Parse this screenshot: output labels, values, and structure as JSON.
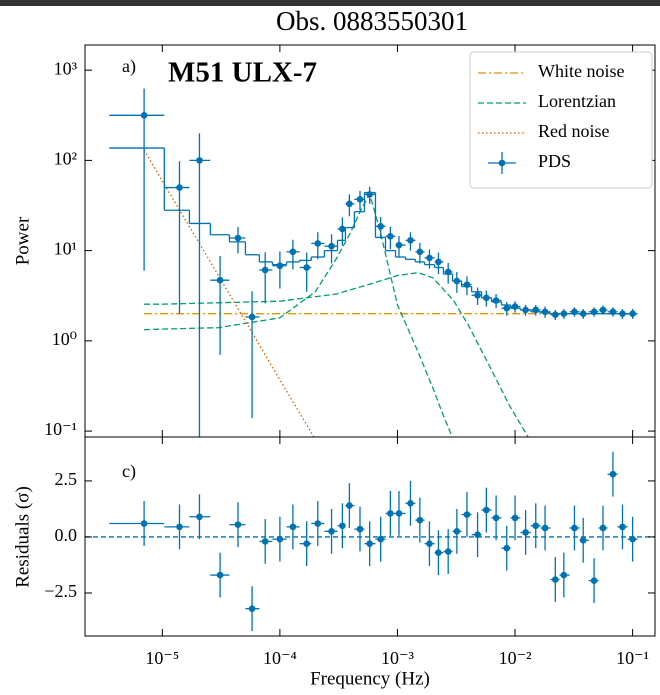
{
  "chart_data": {
    "type": "line",
    "title": "Obs. 0883550301",
    "x_label": "Frequency (Hz)",
    "xscale": "log",
    "xlim": [
      2.2e-06,
      0.155
    ],
    "xticks": [
      {
        "value": 1e-05,
        "label": "10⁻⁵"
      },
      {
        "value": 0.0001,
        "label": "10⁻⁴"
      },
      {
        "value": 0.001,
        "label": "10⁻³"
      },
      {
        "value": 0.01,
        "label": "10⁻²"
      },
      {
        "value": 0.1,
        "label": "10⁻¹"
      }
    ],
    "panels": [
      {
        "label": "a)",
        "annotation": "M51 ULX-7",
        "annotation_color": "#f5a020",
        "y_label": "Power",
        "yscale": "log",
        "ylim": [
          0.086,
          1900
        ],
        "yticks": [
          {
            "value": 0.1,
            "label": "10⁻¹"
          },
          {
            "value": 1,
            "label": "10⁰"
          },
          {
            "value": 10,
            "label": "10¹"
          },
          {
            "value": 100,
            "label": "10²"
          },
          {
            "value": 1000,
            "label": "10³"
          }
        ],
        "legend": "upper right",
        "components": [
          {
            "name": "White noise",
            "color": "#e69500",
            "dash": "dashdot",
            "curves": [
              {
                "x": [
                  7e-06,
                  0.1
                ],
                "values": [
                  2,
                  2
                ]
              }
            ]
          },
          {
            "name": "Lorentzian",
            "color": "#029e73",
            "dash": "dashed",
            "curves": [
              {
                "x": [
                  7e-06,
                  1e-05,
                  3e-05,
                  0.0001,
                  0.0002,
                  0.0003,
                  0.0004,
                  0.0005,
                  0.00058,
                  0.0007,
                  0.001,
                  0.0015,
                  0.002,
                  0.0025,
                  0.003
                ],
                "values": [
                  1.33,
                  1.35,
                  1.4,
                  1.8,
                  3.5,
                  8,
                  16,
                  30,
                  42,
                  18,
                  2.5,
                  0.75,
                  0.3,
                  0.14,
                  0.08
                ]
              },
              {
                "x": [
                  7e-06,
                  1e-05,
                  0.0001,
                  0.0003,
                  0.0006,
                  0.001,
                  0.0015,
                  0.002,
                  0.003,
                  0.004,
                  0.006,
                  0.009,
                  0.013
                ],
                "values": [
                  2.55,
                  2.55,
                  2.75,
                  3.3,
                  4.3,
                  5.3,
                  5.7,
                  5.0,
                  2.8,
                  1.5,
                  0.54,
                  0.19,
                  0.085
                ]
              }
            ]
          },
          {
            "name": "Red noise",
            "color": "#d55e00",
            "dash": "dotted",
            "curves": [
              {
                "x": [
                  7e-06,
                  1e-05,
                  3e-05,
                  0.0001,
                  0.0002
                ],
                "values": [
                  130,
                  59,
                  5.3,
                  0.37,
                  0.081
                ]
              }
            ]
          }
        ],
        "series": [
          {
            "name": "PDS",
            "color": "#0072b2",
            "x": [
              7e-06,
              1.4e-05,
              2.07e-05,
              3.1e-05,
              4.4e-05,
              5.8e-05,
              7.5e-05,
              0.0001,
              0.000129,
              0.000169,
              0.00021,
              0.000275,
              0.00034,
              0.00039,
              0.00048,
              0.00058,
              0.00072,
              0.00087,
              0.00103,
              0.00129,
              0.00155,
              0.00187,
              0.00223,
              0.0027,
              0.0032,
              0.0039,
              0.0048,
              0.0057,
              0.0069,
              0.0085,
              0.01,
              0.0123,
              0.015,
              0.018,
              0.022,
              0.026,
              0.032,
              0.038,
              0.047,
              0.056,
              0.068,
              0.082,
              0.1
            ],
            "bins": [
              3.54e-06,
              1.04e-05,
              1.7e-05,
              2.56e-05,
              3.72e-05,
              5.09e-05,
              6.69e-05,
              8.63e-05,
              0.000114,
              0.000147,
              0.000185,
              0.000239,
              0.000309,
              0.000361,
              0.00043,
              0.000524,
              0.00065,
              0.000791,
              0.000962,
              0.00117,
              0.00142,
              0.0017,
              0.00207,
              0.00246,
              0.00294,
              0.00351,
              0.00427,
              0.00519,
              0.00631,
              0.00767,
              0.00916,
              0.0111,
              0.0136,
              0.0165,
              0.02,
              0.0239,
              0.0291,
              0.0354,
              0.0423,
              0.0514,
              0.0612,
              0.0745,
              0.0906,
              0.11
            ],
            "values": [
              316,
              50,
              100,
              4.7,
              13.8,
              1.84,
              6.1,
              6.8,
              9.7,
              6.5,
              12,
              11.2,
              17.4,
              33,
              37,
              42,
              18.6,
              14.4,
              11.5,
              13,
              9.7,
              8.3,
              7.5,
              5.8,
              4.6,
              4.2,
              3.2,
              3.0,
              2.8,
              2.3,
              2.4,
              2.2,
              2.2,
              2.1,
              1.95,
              2.0,
              2.1,
              2.0,
              2.1,
              2.2,
              2.1,
              2.0,
              2.0
            ],
            "yerr": [
              310,
              48,
              100,
              4,
              4.5,
              1.7,
              3.5,
              3,
              3.5,
              3,
              4,
              4,
              6,
              9,
              9,
              9,
              5,
              4,
              3,
              3,
              2.5,
              2,
              2,
              1.5,
              1.2,
              1,
              0.7,
              0.6,
              0.5,
              0.4,
              0.35,
              0.3,
              0.3,
              0.3,
              0.25,
              0.25,
              0.25,
              0.25,
              0.25,
              0.25,
              0.25,
              0.25,
              0.25
            ],
            "model": [
              137,
              28,
              20,
              15,
              12.5,
              9,
              7.5,
              7,
              7.5,
              7.8,
              8.5,
              10,
              13,
              18,
              27,
              44,
              14,
              10,
              8.5,
              8,
              7.5,
              7,
              6.5,
              5.5,
              4.6,
              4,
              3.5,
              3.0,
              2.7,
              2.5,
              2.3,
              2.2,
              2.1,
              2.05,
              2.0,
              2.0,
              2.0,
              2.0,
              2.0,
              2.0,
              2.0,
              2.0,
              2.0
            ]
          }
        ]
      },
      {
        "label": "c)",
        "y_label": "Residuals (σ)",
        "yscale": "linear",
        "ylim": [
          -4.42,
          4.46
        ],
        "yticks": [
          {
            "value": -2.5,
            "label": "−2.5"
          },
          {
            "value": 0,
            "label": "0.0"
          },
          2.5
        ],
        "hline": 0,
        "series": [
          {
            "color": "#0072b2",
            "values": [
              0.6,
              0.45,
              0.9,
              -1.7,
              0.55,
              -3.2,
              -0.2,
              -0.1,
              0.45,
              -0.3,
              0.6,
              0.25,
              0.5,
              1.4,
              0.35,
              -0.3,
              -0.1,
              1.05,
              1.05,
              1.5,
              0.75,
              -0.3,
              -0.7,
              -0.65,
              0.25,
              1.0,
              0.1,
              1.2,
              0.85,
              -0.5,
              0.85,
              0.2,
              0.5,
              0.4,
              -1.9,
              -1.7,
              0.4,
              -0.15,
              -1.95,
              0.4,
              2.8,
              0.45,
              -0.1
            ],
            "yerr": 1
          }
        ]
      }
    ]
  }
}
